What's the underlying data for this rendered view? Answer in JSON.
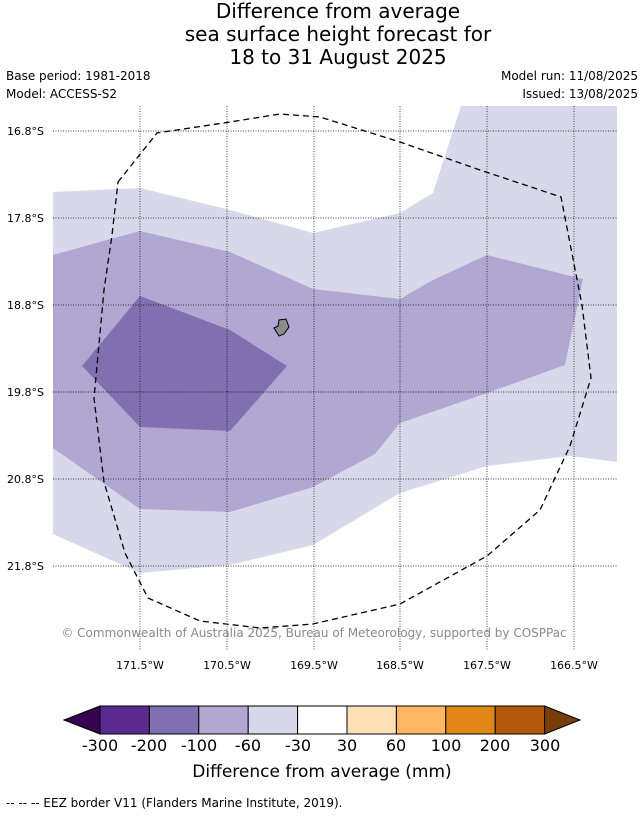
{
  "title": {
    "line1": "Difference from average",
    "line2": "sea surface height forecast for",
    "line3": "18 to 31 August 2025"
  },
  "meta": {
    "base_period": "Base period: 1981-2018",
    "model": "Model: ACCESS-S2",
    "model_run": "Model run: 11/08/2025",
    "issued": "Issued: 13/08/2025"
  },
  "map": {
    "lat_labels": [
      "16.8°S",
      "17.8°S",
      "18.8°S",
      "19.8°S",
      "20.8°S",
      "21.8°S"
    ],
    "lon_labels": [
      "171.5°W",
      "170.5°W",
      "169.5°W",
      "168.5°W",
      "167.5°W",
      "166.5°W"
    ],
    "copyright": "© Commonwealth of Australia 2025, Bureau of Meteorology, supported by COSPPac",
    "land_color": "#8c8c8c",
    "eez_border_style": "dashed"
  },
  "colorbar": {
    "ticks": [
      "-300",
      "-200",
      "-100",
      "-60",
      "-30",
      "30",
      "60",
      "100",
      "200",
      "300"
    ],
    "colors": [
      "#5b2a91",
      "#8070b0",
      "#b0a8d2",
      "#d8d8ea",
      "#ffffff",
      "#ffdfb6",
      "#fdb662",
      "#e28618",
      "#b35909"
    ],
    "under_color": "#35054f",
    "over_color": "#7a3b0a",
    "label": "Difference from average (mm)"
  },
  "footnote": "-- -- -- EEZ border V11 (Flanders Marine Institute, 2019)."
}
